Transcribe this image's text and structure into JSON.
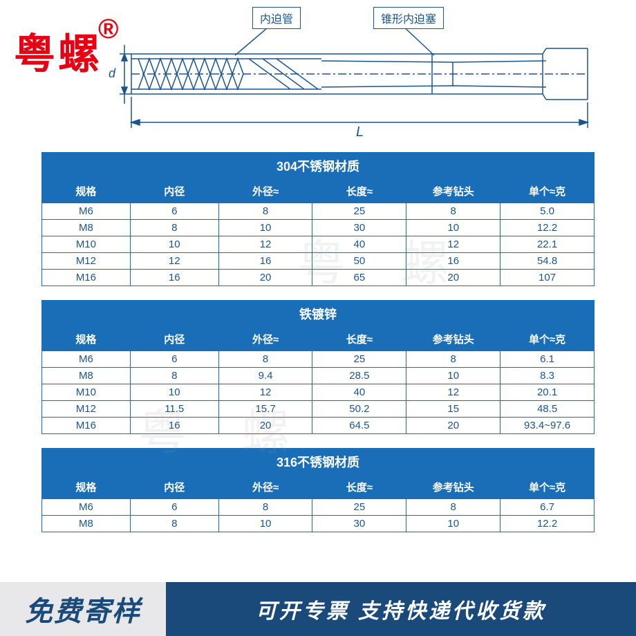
{
  "logo": {
    "text": "粤螺",
    "symbol": "®",
    "color": "#e60012"
  },
  "diagram": {
    "label1": "内迫管",
    "label2": "锥形内迫塞",
    "length_symbol": "L",
    "d_symbol": "d",
    "stroke_color": "#1a5490"
  },
  "watermark_text": "粤 螺",
  "columns": [
    "规格",
    "内径",
    "外径≈",
    "长度≈",
    "参考钻头",
    "单个≈克"
  ],
  "col_widths": [
    "16%",
    "16%",
    "17%",
    "17%",
    "17%",
    "17%"
  ],
  "tables": [
    {
      "title": "304不锈钢材质",
      "rows": [
        [
          "M6",
          "6",
          "8",
          "25",
          "8",
          "5.0"
        ],
        [
          "M8",
          "8",
          "10",
          "30",
          "10",
          "12.2"
        ],
        [
          "M10",
          "10",
          "12",
          "40",
          "12",
          "22.1"
        ],
        [
          "M12",
          "12",
          "16",
          "50",
          "16",
          "54.8"
        ],
        [
          "M16",
          "16",
          "20",
          "65",
          "20",
          "107"
        ]
      ]
    },
    {
      "title": "铁镀锌",
      "rows": [
        [
          "M6",
          "6",
          "8",
          "25",
          "8",
          "6.1"
        ],
        [
          "M8",
          "8",
          "9.4",
          "28.5",
          "10",
          "8.3"
        ],
        [
          "M10",
          "10",
          "12",
          "40",
          "12",
          "20.1"
        ],
        [
          "M12",
          "11.5",
          "15.7",
          "50.2",
          "15",
          "48.5"
        ],
        [
          "M16",
          "16",
          "20",
          "64.5",
          "20",
          "93.4~97.6"
        ]
      ]
    },
    {
      "title": "316不锈钢材质",
      "rows": [
        [
          "M6",
          "6",
          "8",
          "25",
          "8",
          "6.7"
        ],
        [
          "M8",
          "8",
          "10",
          "30",
          "10",
          "12.2"
        ]
      ]
    }
  ],
  "footer": {
    "left": "免费寄样",
    "right": "可开专票  支持快递代收货款",
    "left_bg": "#e8e8ea",
    "left_color": "#1a4a7a",
    "right_bg": "#1a4a7a",
    "right_color": "#ffffff"
  },
  "colors": {
    "header_bg": "#1a6eb8",
    "header_text": "#ffffff",
    "border": "#1a6eb8",
    "cell_text": "#1a5490"
  }
}
